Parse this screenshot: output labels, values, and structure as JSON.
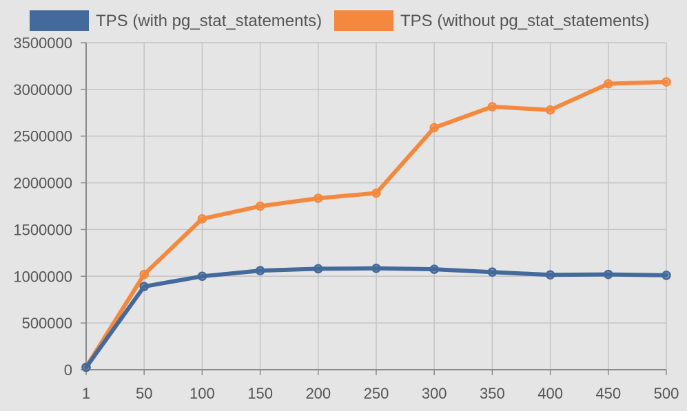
{
  "chart_data": {
    "type": "line",
    "title": "",
    "xlabel": "",
    "ylabel": "",
    "categories": [
      "1",
      "50",
      "100",
      "150",
      "200",
      "250",
      "300",
      "350",
      "400",
      "450",
      "500"
    ],
    "ylim": [
      0,
      3500000
    ],
    "yticks": [
      "0",
      "500000",
      "1000000",
      "1500000",
      "2000000",
      "2500000",
      "3000000",
      "3500000"
    ],
    "grid": true,
    "legend_position": "top",
    "series": [
      {
        "name": "TPS (with pg_stat_statements)",
        "color": "#44699b",
        "values": [
          25000,
          890000,
          1000000,
          1060000,
          1080000,
          1085000,
          1075000,
          1045000,
          1015000,
          1020000,
          1010000
        ]
      },
      {
        "name": "TPS (without pg_stat_statements)",
        "color": "#f5883c",
        "values": [
          28000,
          1020000,
          1615000,
          1750000,
          1835000,
          1890000,
          2590000,
          2815000,
          2780000,
          3060000,
          3080000
        ]
      }
    ]
  }
}
